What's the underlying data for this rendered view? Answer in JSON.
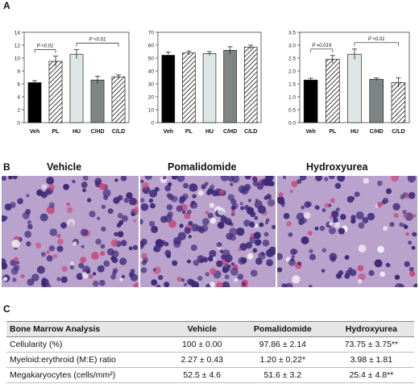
{
  "panels": {
    "a": "A",
    "b": "B",
    "c": "C"
  },
  "chart_data": [
    {
      "type": "bar",
      "categories": [
        "Veh",
        "PL",
        "HU",
        "C/HD",
        "C/LD"
      ],
      "values": [
        6.2,
        9.5,
        10.6,
        6.6,
        7.1
      ],
      "errors": [
        0.3,
        0.8,
        0.7,
        0.6,
        0.3
      ],
      "ylim": [
        0,
        14
      ],
      "yticks": [
        0,
        2,
        4,
        6,
        8,
        10,
        12,
        14
      ],
      "annotations": [
        {
          "label": "P <0.01",
          "from": "Veh",
          "to": "PL"
        },
        {
          "label": "P <0.01",
          "from": "HU",
          "to": "C/LD"
        }
      ]
    },
    {
      "type": "bar",
      "categories": [
        "Veh",
        "PL",
        "HU",
        "C/HD",
        "C/LD"
      ],
      "values": [
        52.2,
        54.0,
        53.5,
        56.0,
        58.5
      ],
      "errors": [
        2.5,
        1.5,
        1.5,
        2.8,
        1.5
      ],
      "ylim": [
        0,
        70
      ],
      "yticks": [
        0,
        10,
        20,
        30,
        40,
        50,
        60,
        70
      ],
      "annotations": []
    },
    {
      "type": "bar",
      "categories": [
        "Veh",
        "PL",
        "HU",
        "C/HD",
        "C/LD"
      ],
      "values": [
        1.65,
        2.45,
        2.65,
        1.68,
        1.55
      ],
      "errors": [
        0.07,
        0.15,
        0.2,
        0.05,
        0.18
      ],
      "ylim": [
        0,
        3.5
      ],
      "yticks": [
        0.0,
        0.5,
        1.0,
        1.5,
        2.0,
        2.5,
        3.0,
        3.5
      ],
      "annotations": [
        {
          "label": "P =0.019",
          "from": "Veh",
          "to": "PL"
        },
        {
          "label": "P <0.01",
          "from": "HU",
          "to": "C/LD"
        }
      ]
    }
  ],
  "micrographs": [
    {
      "title": "Vehicle"
    },
    {
      "title": "Pomalidomide"
    },
    {
      "title": "Hydroxyurea"
    }
  ],
  "table": {
    "headers": [
      "Bone Marrow Analysis",
      "Vehicle",
      "Pomalidomide",
      "Hydroxyurea"
    ],
    "rows": [
      [
        "Cellularity (%)",
        "100 ± 0.00",
        "97.86 ± 2.14",
        "73.75 ± 3.75**"
      ],
      [
        "Myeloid:erythroid (M:E) ratio",
        "2.27 ± 0.43",
        "1.20 ± 0.22*",
        "3.98 ± 1.81"
      ],
      [
        "Megakaryocytes (cells/mm²)",
        "52.5 ± 4.6",
        "51.6 ± 3.2",
        "25.4 ± 4.8**"
      ]
    ]
  },
  "colors": {
    "veh": "#000000",
    "pl_hatch": "#111111",
    "hu": "#dde6e6",
    "chd": "#7f8585",
    "cld_hatch": "#222222",
    "stain_bg": "#b9a2cc",
    "stain_nuclei": "#3d2a78",
    "stain_pink": "#c8497e",
    "table_header": "#e6e6e6"
  }
}
